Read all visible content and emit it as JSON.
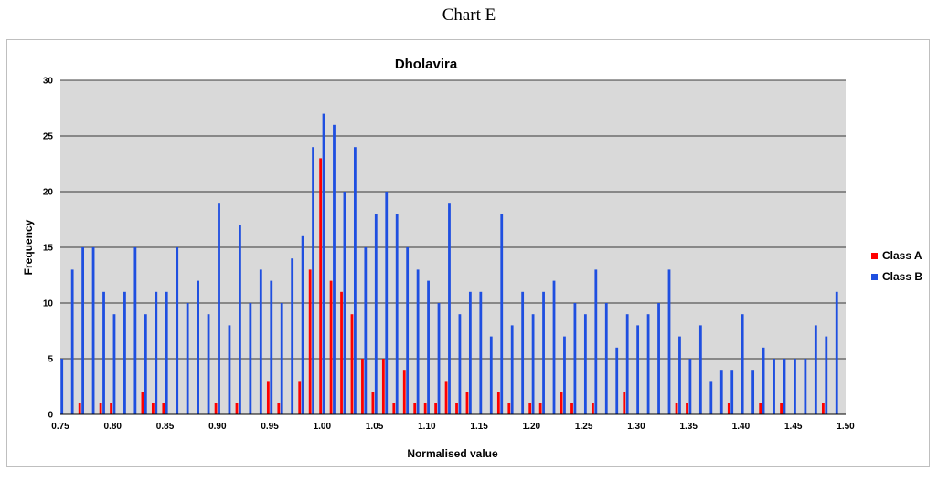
{
  "caption": "Chart E",
  "chart_data": {
    "type": "bar",
    "title": "Dholavira",
    "xlabel": "Normalised value",
    "ylabel": "Frequency",
    "ylim": [
      0,
      30
    ],
    "yticks": [
      0,
      5,
      10,
      15,
      20,
      25,
      30
    ],
    "xlim": [
      0.75,
      1.5
    ],
    "xticks": [
      "0.75",
      "0.80",
      "0.85",
      "0.90",
      "0.95",
      "1.00",
      "1.05",
      "1.10",
      "1.15",
      "1.20",
      "1.25",
      "1.30",
      "1.35",
      "1.40",
      "1.45",
      "1.50"
    ],
    "grid": true,
    "legend_position": "right",
    "x": [
      0.75,
      0.76,
      0.77,
      0.78,
      0.79,
      0.8,
      0.81,
      0.82,
      0.83,
      0.84,
      0.85,
      0.86,
      0.87,
      0.88,
      0.89,
      0.9,
      0.91,
      0.92,
      0.93,
      0.94,
      0.95,
      0.96,
      0.97,
      0.98,
      0.99,
      1.0,
      1.01,
      1.02,
      1.03,
      1.04,
      1.05,
      1.06,
      1.07,
      1.08,
      1.09,
      1.1,
      1.11,
      1.12,
      1.13,
      1.14,
      1.15,
      1.16,
      1.17,
      1.18,
      1.19,
      1.2,
      1.21,
      1.22,
      1.23,
      1.24,
      1.25,
      1.26,
      1.27,
      1.28,
      1.29,
      1.3,
      1.31,
      1.32,
      1.33,
      1.34,
      1.35,
      1.36,
      1.37,
      1.38,
      1.39,
      1.4,
      1.41,
      1.42,
      1.43,
      1.44,
      1.45,
      1.46,
      1.47,
      1.48,
      1.49
    ],
    "series": [
      {
        "name": "Class A",
        "color": "#ff0000",
        "values": [
          0,
          0,
          1,
          0,
          1,
          1,
          0,
          0,
          2,
          1,
          1,
          0,
          0,
          0,
          0,
          1,
          0,
          1,
          0,
          0,
          3,
          1,
          0,
          3,
          13,
          23,
          12,
          11,
          9,
          5,
          2,
          5,
          1,
          4,
          1,
          1,
          1,
          3,
          1,
          2,
          0,
          0,
          2,
          1,
          0,
          1,
          1,
          0,
          2,
          1,
          0,
          1,
          0,
          0,
          2,
          0,
          0,
          0,
          0,
          1,
          1,
          0,
          0,
          0,
          1,
          0,
          0,
          1,
          0,
          1,
          0,
          0,
          0,
          1,
          0
        ]
      },
      {
        "name": "Class B",
        "color": "#1f4fe0",
        "values": [
          5,
          13,
          15,
          15,
          11,
          9,
          11,
          15,
          9,
          11,
          11,
          15,
          10,
          12,
          9,
          19,
          8,
          17,
          10,
          13,
          12,
          10,
          14,
          16,
          24,
          27,
          26,
          20,
          24,
          15,
          18,
          20,
          18,
          15,
          13,
          12,
          10,
          19,
          9,
          11,
          11,
          7,
          18,
          8,
          11,
          9,
          11,
          12,
          7,
          10,
          9,
          13,
          10,
          6,
          9,
          8,
          9,
          10,
          13,
          7,
          5,
          8,
          3,
          4,
          4,
          9,
          4,
          6,
          5,
          5,
          5,
          5,
          8,
          7,
          11
        ]
      }
    ]
  }
}
